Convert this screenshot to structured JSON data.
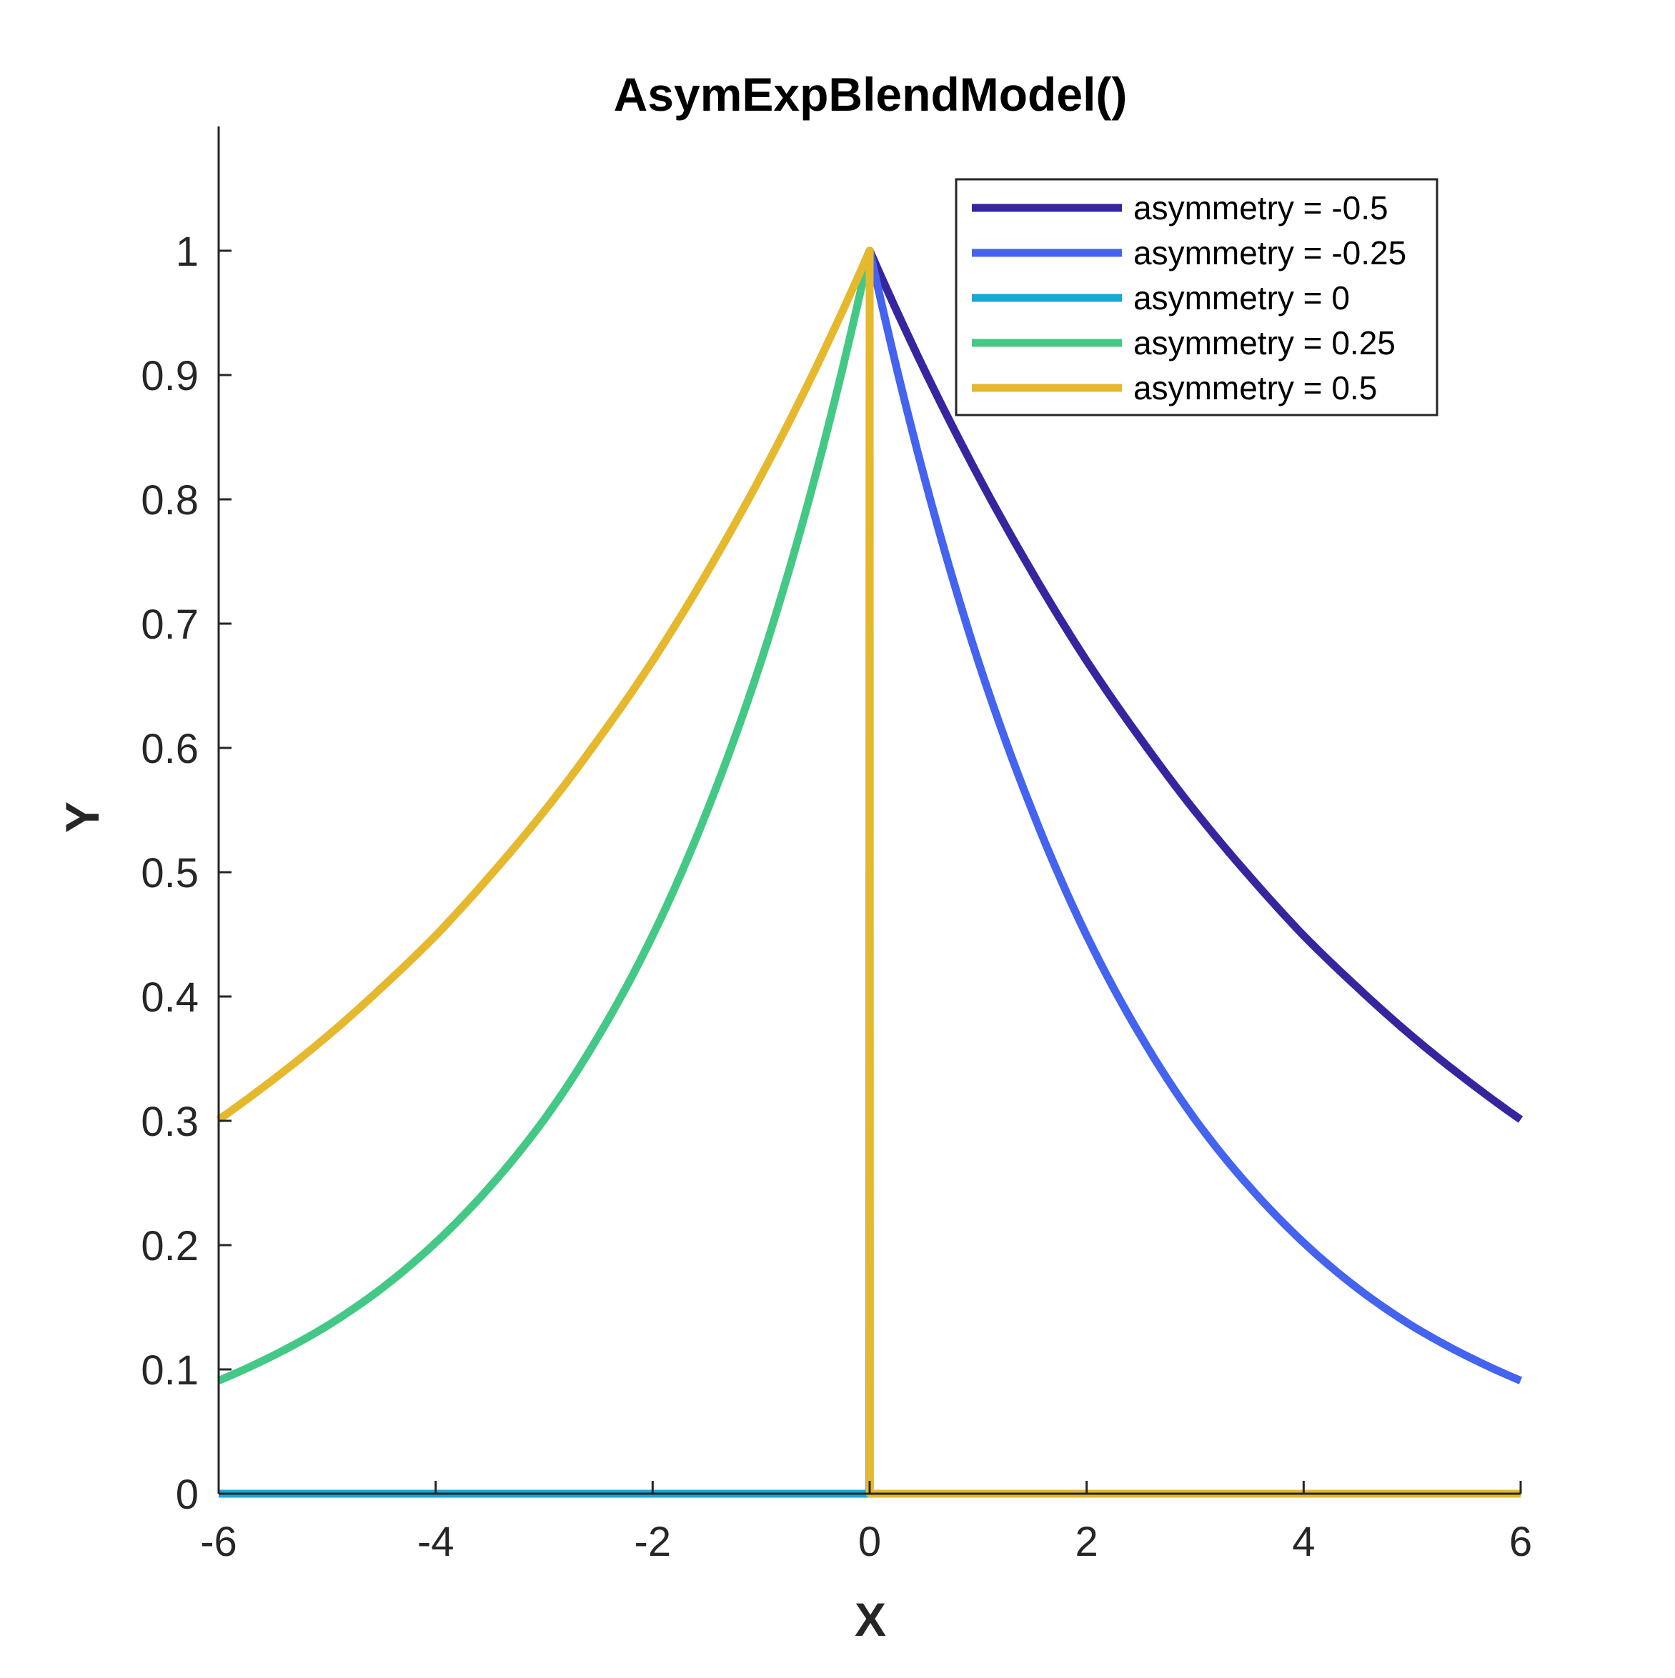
{
  "chart_data": {
    "type": "line",
    "title": "AsymExpBlendModel()",
    "xlabel": "X",
    "ylabel": "Y",
    "xlim": [
      -6,
      6
    ],
    "ylim": [
      0,
      1.1
    ],
    "xticks": [
      "-6",
      "-4",
      "-2",
      "0",
      "2",
      "4",
      "6"
    ],
    "yticks": [
      "0",
      "0.1",
      "0.2",
      "0.3",
      "0.4",
      "0.5",
      "0.6",
      "0.7",
      "0.8",
      "0.9",
      "1"
    ],
    "grid": false,
    "legend_position": "top-right",
    "x": [
      -6,
      -5.5,
      -5,
      -4.5,
      -4,
      -3.5,
      -3,
      -2.5,
      -2,
      -1.5,
      -1,
      -0.5,
      -0.001,
      0,
      0.001,
      0.5,
      1,
      1.5,
      2,
      2.5,
      3,
      3.5,
      4,
      4.5,
      5,
      5.5,
      6
    ],
    "series": [
      {
        "name": "asymmetry = -0.5",
        "color": "#3526A0",
        "values": [
          0,
          0,
          0,
          0,
          0,
          0,
          0,
          0,
          0,
          0,
          0,
          0,
          0,
          1,
          1,
          0.905,
          0.819,
          0.741,
          0.67,
          0.607,
          0.549,
          0.497,
          0.449,
          0.407,
          0.368,
          0.333,
          0.301
        ]
      },
      {
        "name": "asymmetry = -0.25",
        "color": "#4463EE",
        "values": [
          0,
          0,
          0,
          0,
          0,
          0,
          0,
          0,
          0,
          0,
          0,
          0,
          0,
          1,
          1,
          0.819,
          0.67,
          0.549,
          0.449,
          0.368,
          0.301,
          0.247,
          0.202,
          0.165,
          0.135,
          0.111,
          0.091
        ]
      },
      {
        "name": "asymmetry = 0",
        "color": "#1AA6D9",
        "values": [
          0,
          0,
          0,
          0,
          0,
          0,
          0,
          0,
          0,
          0,
          0,
          0,
          0,
          0,
          0,
          0,
          0,
          0,
          0,
          0,
          0,
          0,
          0,
          0,
          0,
          0,
          0
        ]
      },
      {
        "name": "asymmetry = 0.25",
        "color": "#43C985",
        "values": [
          0.091,
          0.111,
          0.135,
          0.165,
          0.202,
          0.247,
          0.301,
          0.368,
          0.449,
          0.549,
          0.67,
          0.819,
          1,
          1,
          0,
          0,
          0,
          0,
          0,
          0,
          0,
          0,
          0,
          0,
          0,
          0,
          0
        ]
      },
      {
        "name": "asymmetry = 0.5",
        "color": "#E6B82E",
        "values": [
          0.301,
          0.333,
          0.368,
          0.407,
          0.449,
          0.497,
          0.549,
          0.607,
          0.67,
          0.741,
          0.819,
          0.905,
          1,
          1,
          0,
          0,
          0,
          0,
          0,
          0,
          0,
          0,
          0,
          0,
          0,
          0,
          0
        ]
      }
    ]
  }
}
